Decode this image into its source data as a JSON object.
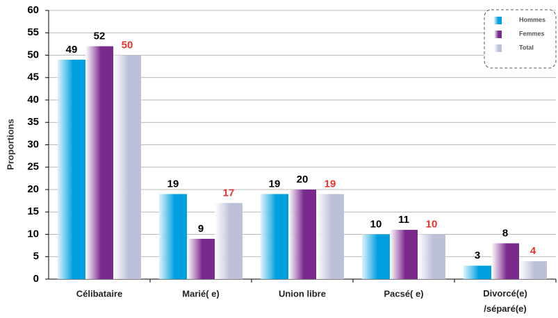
{
  "chart_data": {
    "type": "bar",
    "y_label": "Proportions",
    "categories": [
      "Célibataire",
      "Marié( e)",
      "Union libre",
      "Pacsé( e)",
      "Divorcé(e)\n/séparé(e)"
    ],
    "series": [
      {
        "name": "Hommes",
        "color": "#00a0e0",
        "label_color": "#000000",
        "values": [
          49,
          19,
          19,
          10,
          3
        ]
      },
      {
        "name": "Femmes",
        "color": "#7a2a8c",
        "label_color": "#000000",
        "values": [
          52,
          9,
          20,
          11,
          8
        ]
      },
      {
        "name": "Total",
        "color": "#bcc0d8",
        "label_color": "#e8322e",
        "values": [
          50,
          17,
          19,
          10,
          4
        ]
      }
    ],
    "ylim": [
      0,
      60
    ],
    "yticks": [
      0,
      5,
      10,
      15,
      20,
      25,
      30,
      35,
      40,
      45,
      50,
      55,
      60
    ],
    "grid": true,
    "legend": "top-right"
  }
}
